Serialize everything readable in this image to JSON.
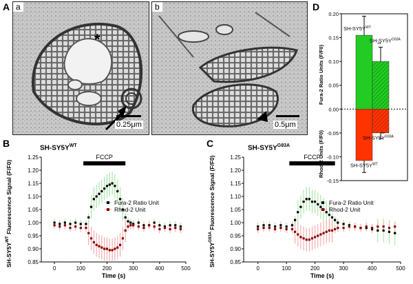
{
  "figure": {
    "panel_letters": {
      "A": "A",
      "B": "B",
      "C": "C",
      "D": "D"
    },
    "subpanel_letters": {
      "a": "a",
      "b": "b"
    },
    "scalebars": {
      "a": "0.25μm",
      "b": "0.5μm"
    },
    "em_marker": "*"
  },
  "chart_data": [
    {
      "panel": "B",
      "type": "line",
      "title": "SH-SY5Y",
      "title_sup": "WT",
      "ylabel_pre": "SH-SY5Y",
      "ylabel_sup": "WT",
      "ylabel_post": " Fluorescence Signal (F/F0)",
      "xlabel": "Time (s)",
      "xlim": [
        -50,
        500
      ],
      "ylim": [
        0.85,
        1.25
      ],
      "xticks": [
        "0",
        "100",
        "200",
        "300",
        "400",
        "500"
      ],
      "yticks": [
        "0.85",
        "0.90",
        "0.95",
        "1.00",
        "1.05",
        "1.10",
        "1.15",
        "1.20",
        "1.25"
      ],
      "annotation": {
        "label": "FCCP",
        "x_start": 110,
        "x_end": 270
      },
      "legend": {
        "placement": "middle-right",
        "entries": [
          "Fura-2 Ratio Unit",
          "Rhod-2 Unit"
        ]
      },
      "series": [
        {
          "name": "Fura-2 Ratio Unit",
          "color": "#000000",
          "x": [
            0,
            20,
            40,
            60,
            80,
            100,
            120,
            130,
            140,
            150,
            160,
            170,
            180,
            190,
            200,
            210,
            220,
            230,
            240,
            250,
            260,
            270,
            280,
            290,
            300,
            320,
            340,
            360,
            380,
            400,
            420,
            440,
            460,
            480
          ],
          "y": [
            1.0,
            0.995,
            1.0,
            0.995,
            1.0,
            0.995,
            0.995,
            1.02,
            1.06,
            1.09,
            1.1,
            1.11,
            1.12,
            1.13,
            1.14,
            1.145,
            1.15,
            1.14,
            1.12,
            1.09,
            1.05,
            1.02,
            1.005,
            1.0,
            0.995,
            1.0,
            0.99,
            0.99,
            1.0,
            0.99,
            0.985,
            0.99,
            0.99,
            0.985
          ]
        },
        {
          "name": "Rhod-2 Unit",
          "color": "#8b0000",
          "x": [
            0,
            20,
            40,
            60,
            80,
            100,
            120,
            130,
            140,
            150,
            160,
            170,
            180,
            190,
            200,
            210,
            220,
            230,
            240,
            250,
            260,
            270,
            280,
            290,
            300,
            320,
            340,
            360,
            380,
            400,
            420,
            440,
            460,
            480
          ],
          "y": [
            0.99,
            0.985,
            0.99,
            0.98,
            0.985,
            0.98,
            0.98,
            0.96,
            0.94,
            0.925,
            0.915,
            0.91,
            0.905,
            0.9,
            0.9,
            0.895,
            0.895,
            0.9,
            0.905,
            0.915,
            0.94,
            0.97,
            0.985,
            0.99,
            0.99,
            0.985,
            0.98,
            0.99,
            0.985,
            0.975,
            0.98,
            0.975,
            0.98,
            0.975
          ]
        }
      ]
    },
    {
      "panel": "C",
      "type": "line",
      "title": "SH-SY5Y",
      "title_sup": "G93A",
      "ylabel_pre": "SH-SY5Y",
      "ylabel_sup": "G93A",
      "ylabel_post": " Fluorescence Signal (F/F0)",
      "xlabel": "Time (s)",
      "xlim": [
        -50,
        500
      ],
      "ylim": [
        0.85,
        1.25
      ],
      "xticks": [
        "0",
        "100",
        "200",
        "300",
        "400",
        "500"
      ],
      "yticks": [
        "0.85",
        "0.90",
        "0.95",
        "1.00",
        "1.05",
        "1.10",
        "1.15",
        "1.20",
        "1.25"
      ],
      "annotation": {
        "label": "FCCP",
        "x_start": 110,
        "x_end": 270
      },
      "legend": {
        "placement": "middle-right",
        "entries": [
          "Fura-2 Ratio Unit",
          "Rhod-2 Unit"
        ]
      },
      "series": [
        {
          "name": "Fura-2 Ratio Unit",
          "color": "#000000",
          "x": [
            0,
            20,
            40,
            60,
            80,
            100,
            120,
            130,
            140,
            150,
            160,
            170,
            180,
            190,
            200,
            210,
            220,
            230,
            240,
            250,
            260,
            270,
            280,
            300,
            320,
            340,
            360,
            380,
            400,
            420,
            440,
            460,
            480
          ],
          "y": [
            0.985,
            0.99,
            0.99,
            0.985,
            0.99,
            0.985,
            0.99,
            1.01,
            1.04,
            1.06,
            1.08,
            1.09,
            1.09,
            1.08,
            1.08,
            1.07,
            1.06,
            1.05,
            1.04,
            1.03,
            1.02,
            1.01,
            1.0,
            0.995,
            0.99,
            0.985,
            0.98,
            0.98,
            0.975,
            0.97,
            0.97,
            0.965,
            0.96
          ]
        },
        {
          "name": "Rhod-2 Unit",
          "color": "#8b0000",
          "x": [
            0,
            20,
            40,
            60,
            80,
            100,
            120,
            130,
            140,
            150,
            160,
            170,
            180,
            190,
            200,
            210,
            220,
            230,
            240,
            250,
            260,
            270,
            280,
            300,
            320,
            340,
            360,
            380,
            400,
            420,
            440,
            460,
            480
          ],
          "y": [
            0.975,
            0.98,
            0.98,
            0.975,
            0.98,
            0.975,
            0.975,
            0.965,
            0.955,
            0.945,
            0.94,
            0.935,
            0.935,
            0.94,
            0.945,
            0.95,
            0.955,
            0.96,
            0.965,
            0.97,
            0.97,
            0.975,
            0.98,
            0.98,
            0.985,
            0.985,
            0.98,
            0.985,
            0.98,
            0.985,
            0.985,
            0.98,
            0.985
          ]
        }
      ]
    },
    {
      "panel": "D",
      "type": "bar",
      "ylabel_top": "Fura-2 Ratio Units (F/F0)",
      "ylabel_bottom": "Rhod-2 Units (F/F0)",
      "ylim": [
        -0.15,
        0.2
      ],
      "yticks": [
        "-0.15",
        "-0.10",
        "-0.05",
        "0.00",
        "0.05",
        "0.10",
        "0.15",
        "0.20"
      ],
      "categories": [
        "SH-SY5Y WT",
        "SH-SY5Y G93A"
      ],
      "cat_labels": [
        {
          "pre": "SH-SY5Y",
          "sup": "WT"
        },
        {
          "pre": "SH-SY5Y",
          "sup": "G93A"
        }
      ],
      "significance": "**",
      "series": [
        {
          "name": "Fura-2 Ratio Units",
          "color": "#22cc22",
          "values": [
            0.155,
            0.1
          ],
          "errors": [
            0.04,
            0.03
          ]
        },
        {
          "name": "Rhod-2 Units",
          "color": "#ff3300",
          "values": [
            -0.108,
            -0.05
          ],
          "errors": [
            0.025,
            0.012
          ]
        }
      ]
    }
  ]
}
